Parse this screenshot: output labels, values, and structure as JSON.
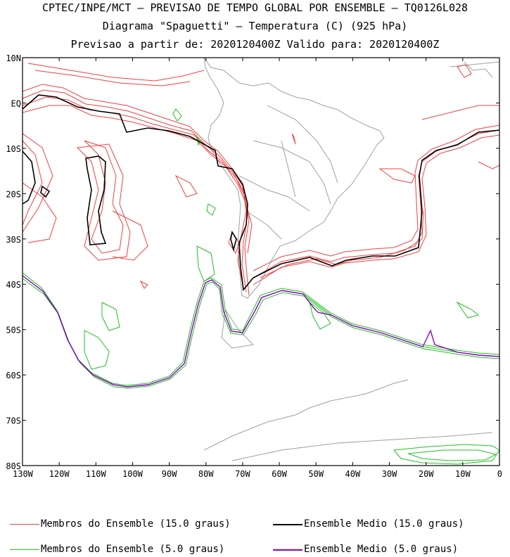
{
  "header": {
    "line1": "CPTEC/INPE/MCT – PREVISAO DE TEMPO GLOBAL POR ENSEMBLE – TQ0126L028",
    "line2": "Diagrama \"Spaguetti\" – Temperatura (C) (925 hPa)",
    "line3": "Previsao a partir de: 2020120400Z  Valido para: 2020120400Z"
  },
  "map": {
    "lat_ticks": [
      "10N",
      "EQ",
      "10S",
      "20S",
      "30S",
      "40S",
      "50S",
      "60S",
      "70S",
      "80S"
    ],
    "lon_ticks": [
      "130W",
      "120W",
      "110W",
      "100W",
      "90W",
      "80W",
      "70W",
      "60W",
      "50W",
      "40W",
      "30W",
      "20W",
      "10W",
      "0"
    ],
    "lon_range": [
      -130,
      0
    ],
    "lat_range": [
      -80,
      10
    ]
  },
  "legend": {
    "items": [
      {
        "label": "Membros do Ensemble (15.0 graus)",
        "color": "#f04040"
      },
      {
        "label": "Ensemble Medio (15.0 graus)",
        "color": "#000000"
      },
      {
        "label": "Membros do Ensemble (5.0 graus)",
        "color": "#20c020"
      },
      {
        "label": "Ensemble Medio (5.0 graus)",
        "color": "#9000c0"
      }
    ]
  }
}
